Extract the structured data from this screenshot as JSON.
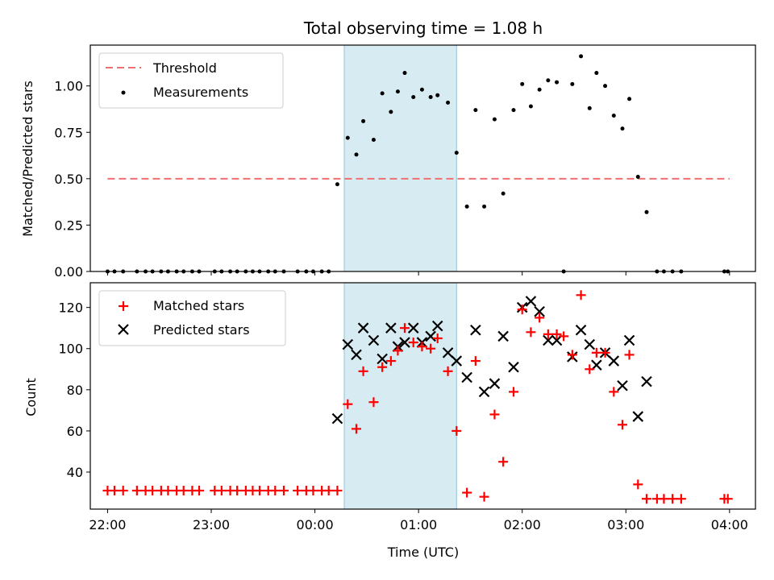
{
  "chart_data": [
    {
      "type": "scatter",
      "title": "Total observing time = 1.08 h",
      "xlabel": "",
      "ylabel": "Matched/Predicted stars",
      "ylim": [
        0,
        1.22
      ],
      "yticks": [
        "0.00",
        "0.25",
        "0.50",
        "0.75",
        "1.00"
      ],
      "xlim": [
        "21:50",
        "04:15"
      ],
      "highlight_span": [
        "00:17",
        "01:22"
      ],
      "threshold": {
        "name": "Threshold",
        "value": 0.5,
        "x_range": [
          "22:00",
          "04:00"
        ],
        "color": "#f07070"
      },
      "legend_position": "top-left",
      "series": [
        {
          "name": "Measurements",
          "color": "#000000",
          "points": [
            [
              "22:00",
              0
            ],
            [
              "22:04",
              0
            ],
            [
              "22:09",
              0
            ],
            [
              "22:17",
              0
            ],
            [
              "22:22",
              0
            ],
            [
              "22:26",
              0
            ],
            [
              "22:31",
              0
            ],
            [
              "22:35",
              0
            ],
            [
              "22:40",
              0
            ],
            [
              "22:44",
              0
            ],
            [
              "22:49",
              0
            ],
            [
              "22:53",
              0
            ],
            [
              "23:02",
              0
            ],
            [
              "23:06",
              0
            ],
            [
              "23:11",
              0
            ],
            [
              "23:15",
              0
            ],
            [
              "23:20",
              0
            ],
            [
              "23:24",
              0
            ],
            [
              "23:28",
              0
            ],
            [
              "23:33",
              0
            ],
            [
              "23:37",
              0
            ],
            [
              "23:42",
              0
            ],
            [
              "23:50",
              0
            ],
            [
              "23:55",
              0
            ],
            [
              "23:59",
              0
            ],
            [
              "00:04",
              0
            ],
            [
              "00:08",
              0
            ],
            [
              "00:13",
              0.47
            ],
            [
              "00:19",
              0.72
            ],
            [
              "00:24",
              0.63
            ],
            [
              "00:28",
              0.81
            ],
            [
              "00:34",
              0.71
            ],
            [
              "00:39",
              0.96
            ],
            [
              "00:44",
              0.86
            ],
            [
              "00:48",
              0.97
            ],
            [
              "00:52",
              1.07
            ],
            [
              "00:57",
              0.94
            ],
            [
              "01:02",
              0.98
            ],
            [
              "01:07",
              0.94
            ],
            [
              "01:11",
              0.95
            ],
            [
              "01:17",
              0.91
            ],
            [
              "01:22",
              0.64
            ],
            [
              "01:28",
              0.35
            ],
            [
              "01:33",
              0.87
            ],
            [
              "01:38",
              0.35
            ],
            [
              "01:44",
              0.82
            ],
            [
              "01:49",
              0.42
            ],
            [
              "01:55",
              0.87
            ],
            [
              "02:00",
              1.01
            ],
            [
              "02:05",
              0.89
            ],
            [
              "02:10",
              0.98
            ],
            [
              "02:15",
              1.03
            ],
            [
              "02:20",
              1.02
            ],
            [
              "02:24",
              0
            ],
            [
              "02:29",
              1.01
            ],
            [
              "02:34",
              1.16
            ],
            [
              "02:39",
              0.88
            ],
            [
              "02:43",
              1.07
            ],
            [
              "02:48",
              1.0
            ],
            [
              "02:53",
              0.84
            ],
            [
              "02:58",
              0.77
            ],
            [
              "03:02",
              0.93
            ],
            [
              "03:07",
              0.51
            ],
            [
              "03:12",
              0.32
            ],
            [
              "03:18",
              0
            ],
            [
              "03:22",
              0
            ],
            [
              "03:27",
              0
            ],
            [
              "03:32",
              0
            ],
            [
              "03:57",
              0
            ],
            [
              "03:59",
              0
            ]
          ]
        }
      ]
    },
    {
      "type": "scatter",
      "title": "",
      "xlabel": "Time (UTC)",
      "ylabel": "Count",
      "ylim": [
        22,
        132
      ],
      "yticks": [
        "40",
        "60",
        "80",
        "100",
        "120"
      ],
      "xlim": [
        "21:50",
        "04:15"
      ],
      "xticks": [
        "22:00",
        "23:00",
        "00:00",
        "01:00",
        "02:00",
        "03:00",
        "04:00"
      ],
      "highlight_span": [
        "00:17",
        "01:22"
      ],
      "legend_position": "top-left",
      "series": [
        {
          "name": "Matched stars",
          "marker": "plus",
          "color": "#ff0000",
          "points": [
            [
              "22:00",
              31
            ],
            [
              "22:04",
              31
            ],
            [
              "22:09",
              31
            ],
            [
              "22:17",
              31
            ],
            [
              "22:22",
              31
            ],
            [
              "22:26",
              31
            ],
            [
              "22:31",
              31
            ],
            [
              "22:35",
              31
            ],
            [
              "22:40",
              31
            ],
            [
              "22:44",
              31
            ],
            [
              "22:49",
              31
            ],
            [
              "22:53",
              31
            ],
            [
              "23:02",
              31
            ],
            [
              "23:06",
              31
            ],
            [
              "23:11",
              31
            ],
            [
              "23:15",
              31
            ],
            [
              "23:20",
              31
            ],
            [
              "23:24",
              31
            ],
            [
              "23:28",
              31
            ],
            [
              "23:33",
              31
            ],
            [
              "23:37",
              31
            ],
            [
              "23:42",
              31
            ],
            [
              "23:50",
              31
            ],
            [
              "23:55",
              31
            ],
            [
              "23:59",
              31
            ],
            [
              "00:04",
              31
            ],
            [
              "00:08",
              31
            ],
            [
              "00:13",
              31
            ],
            [
              "00:19",
              73
            ],
            [
              "00:24",
              61
            ],
            [
              "00:28",
              89
            ],
            [
              "00:34",
              74
            ],
            [
              "00:39",
              91
            ],
            [
              "00:44",
              94
            ],
            [
              "00:48",
              99
            ],
            [
              "00:52",
              110
            ],
            [
              "00:57",
              103
            ],
            [
              "01:02",
              101
            ],
            [
              "01:07",
              100
            ],
            [
              "01:11",
              105
            ],
            [
              "01:17",
              89
            ],
            [
              "01:22",
              60
            ],
            [
              "01:28",
              30
            ],
            [
              "01:33",
              94
            ],
            [
              "01:38",
              28
            ],
            [
              "01:44",
              68
            ],
            [
              "01:49",
              45
            ],
            [
              "01:55",
              79
            ],
            [
              "02:00",
              119
            ],
            [
              "02:05",
              108
            ],
            [
              "02:10",
              115
            ],
            [
              "02:15",
              107
            ],
            [
              "02:20",
              107
            ],
            [
              "02:24",
              106
            ],
            [
              "02:29",
              97
            ],
            [
              "02:34",
              126
            ],
            [
              "02:39",
              90
            ],
            [
              "02:43",
              98
            ],
            [
              "02:48",
              98
            ],
            [
              "02:53",
              79
            ],
            [
              "02:58",
              63
            ],
            [
              "03:02",
              97
            ],
            [
              "03:07",
              34
            ],
            [
              "03:12",
              27
            ],
            [
              "03:18",
              27
            ],
            [
              "03:22",
              27
            ],
            [
              "03:27",
              27
            ],
            [
              "03:32",
              27
            ],
            [
              "03:57",
              27
            ],
            [
              "03:59",
              27
            ]
          ]
        },
        {
          "name": "Predicted stars",
          "marker": "x",
          "color": "#000000",
          "points": [
            [
              "00:13",
              66
            ],
            [
              "00:19",
              102
            ],
            [
              "00:24",
              97
            ],
            [
              "00:28",
              110
            ],
            [
              "00:34",
              104
            ],
            [
              "00:39",
              95
            ],
            [
              "00:44",
              110
            ],
            [
              "00:48",
              101
            ],
            [
              "00:52",
              103
            ],
            [
              "00:57",
              110
            ],
            [
              "01:02",
              103
            ],
            [
              "01:07",
              106
            ],
            [
              "01:11",
              111
            ],
            [
              "01:17",
              98
            ],
            [
              "01:22",
              94
            ],
            [
              "01:28",
              86
            ],
            [
              "01:33",
              109
            ],
            [
              "01:38",
              79
            ],
            [
              "01:44",
              83
            ],
            [
              "01:49",
              106
            ],
            [
              "01:55",
              91
            ],
            [
              "02:00",
              120
            ],
            [
              "02:05",
              123
            ],
            [
              "02:10",
              118
            ],
            [
              "02:15",
              104
            ],
            [
              "02:20",
              104
            ],
            [
              "02:29",
              96
            ],
            [
              "02:34",
              109
            ],
            [
              "02:39",
              102
            ],
            [
              "02:43",
              92
            ],
            [
              "02:48",
              98
            ],
            [
              "02:53",
              94
            ],
            [
              "02:58",
              82
            ],
            [
              "03:02",
              104
            ],
            [
              "03:07",
              67
            ],
            [
              "03:12",
              84
            ]
          ]
        }
      ]
    }
  ]
}
